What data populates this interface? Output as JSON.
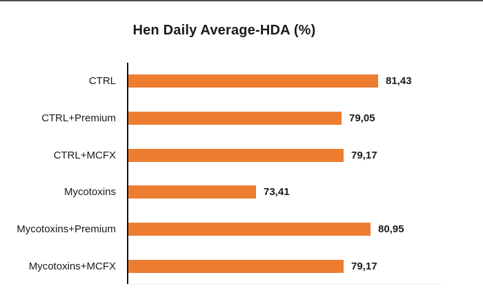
{
  "window": {
    "background_color": "#ffffff",
    "top_border_color": "#515151"
  },
  "chart_data": {
    "type": "bar",
    "orientation": "horizontal",
    "title": "Hen Daily Average-HDA (%)",
    "categories": [
      "CTRL",
      "CTRL+Premium",
      "CTRL+MCFX",
      "Mycotoxins",
      "Mycotoxins+Premium",
      "Mycotoxins+MCFX"
    ],
    "values": [
      81.43,
      79.05,
      79.17,
      73.41,
      80.95,
      79.17
    ],
    "value_labels": [
      "81,43",
      "79,05",
      "79,17",
      "73,41",
      "80,95",
      "79,17"
    ],
    "xlabel": "",
    "ylabel": "",
    "xlim": [
      65,
      87.7
    ],
    "bar_color": "#ED7D31",
    "axis_line_color": "#111111",
    "grid": false,
    "legend": false,
    "value_labels_position": "end-of-bar",
    "value_label_weight": "bold"
  }
}
